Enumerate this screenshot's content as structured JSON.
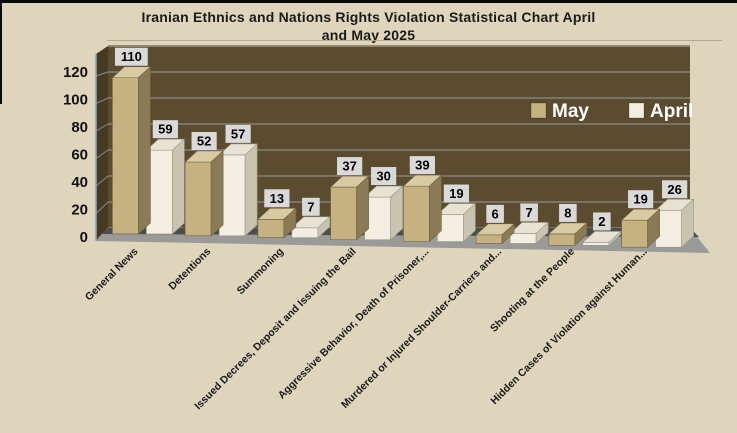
{
  "page": {
    "colors": {
      "background": "#DFD5BC",
      "border": "#0A0A0A",
      "title_text": "#1A1A1A",
      "title_rule": "#B3AA94"
    }
  },
  "chart_data": {
    "type": "bar",
    "projection": "3d-clustered",
    "title": "Iranian Ethnics and Nations Rights Violation Statistical Chart April and May 2025",
    "title_lines": [
      "Iranian Ethnics and Nations Rights Violation Statistical Chart April",
      "and May 2025"
    ],
    "categories": [
      "General News",
      "Detentions",
      "Summoning",
      "Issued Decrees, Deposit and Issuing the Bail",
      "Aggressive Behavior, Death of Prisoner,...",
      "Murdered or Injured Shoulder-Carriers and...",
      "Shooting at the People",
      "Hidden Cases of Violation against Human..."
    ],
    "series": [
      {
        "name": "May",
        "values": [
          110,
          52,
          13,
          37,
          39,
          6,
          8,
          19
        ],
        "front": "#C5B280",
        "top": "#D8CBA3",
        "side": "#8A7A55",
        "stroke": "#6F6142"
      },
      {
        "name": "April",
        "values": [
          59,
          57,
          7,
          30,
          19,
          7,
          2,
          26
        ],
        "front": "#F2EEE1",
        "top": "#E6E2D4",
        "side": "#C9C3B1",
        "stroke": "#9C9786"
      }
    ],
    "ylim": [
      0,
      140
    ],
    "yticks": [
      0,
      20,
      40,
      60,
      80,
      100,
      120
    ],
    "grid": true,
    "legend_position": "inside-top-right",
    "colors": {
      "wall": "#5C4C2F",
      "wall_side": "#473A23",
      "wall_edge": "#8F876F",
      "floor": "#9A9A98",
      "floor_shadow": "#4D4D4B",
      "gridline": "#8B8B8B",
      "axis_line": "#8FA5BF",
      "tick_text": "#111111",
      "category_text": "#1A1A1A",
      "legend_text": "#FFFFFF",
      "label_box_bg": "#D9D9D9",
      "label_box_text": "#000000"
    }
  }
}
